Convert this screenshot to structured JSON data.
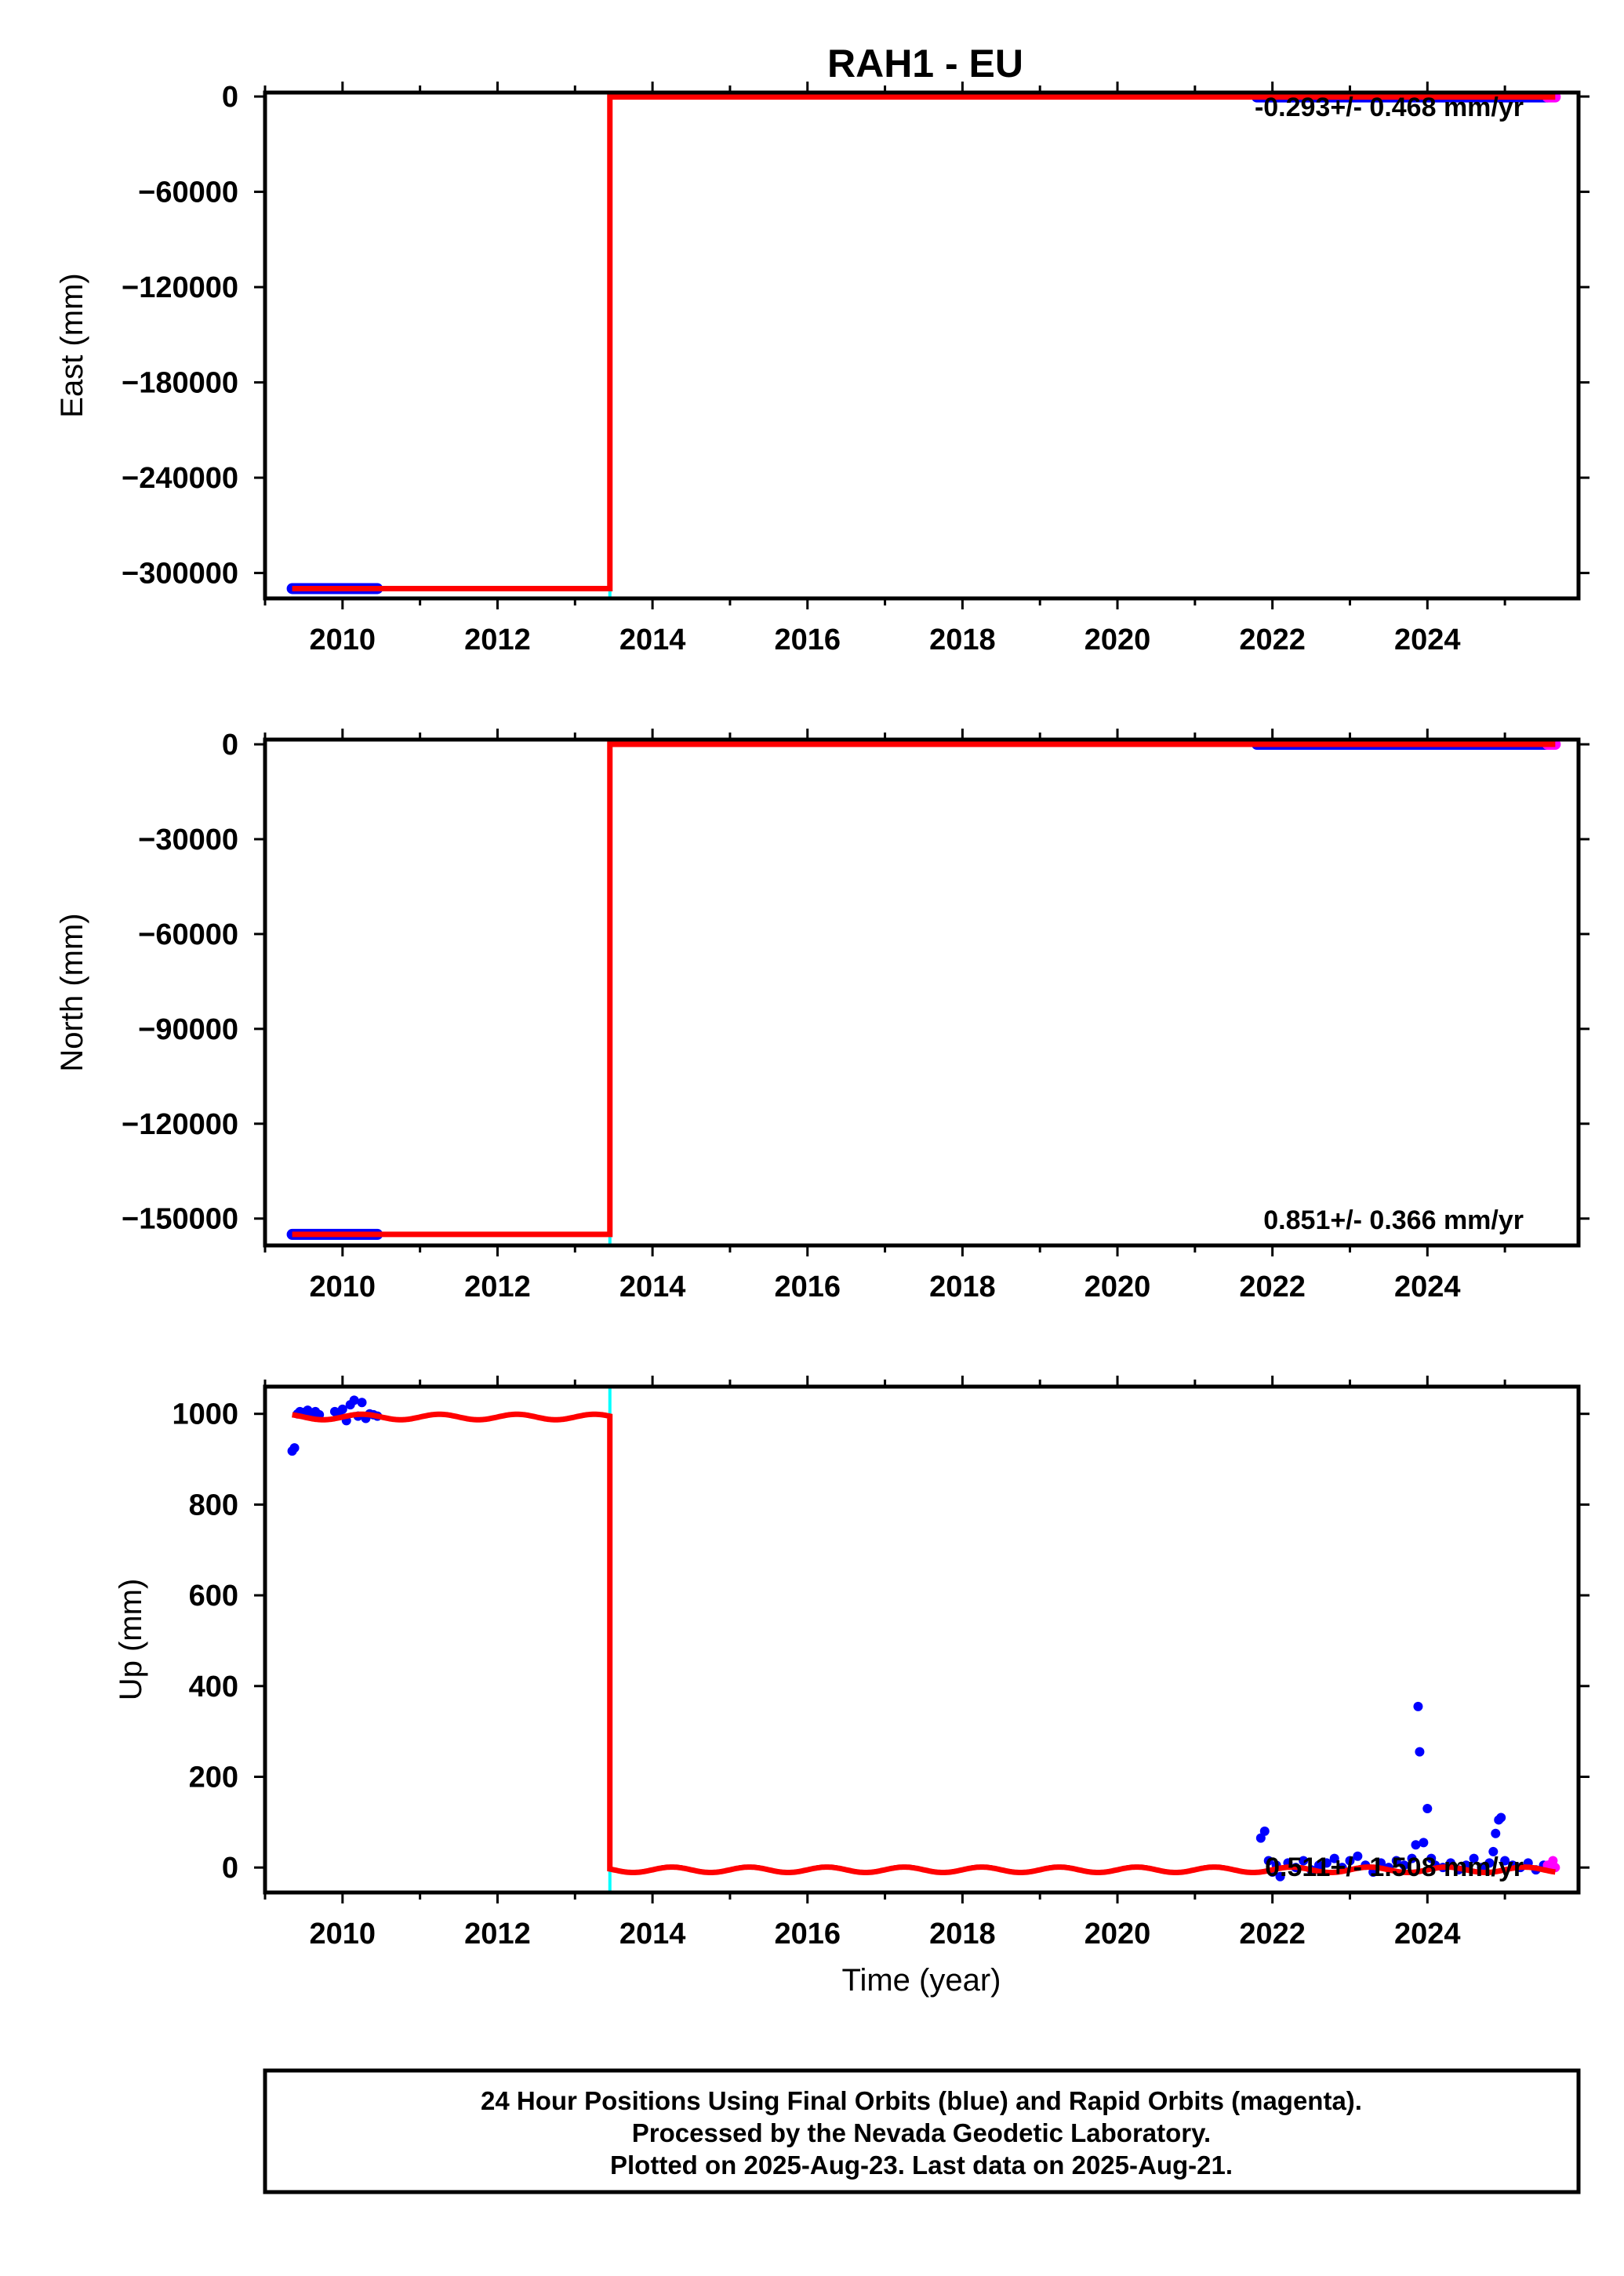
{
  "figure": {
    "title": "RAH1 - EU",
    "footer": [
      "24 Hour Positions Using Final Orbits (blue) and Rapid Orbits (magenta).",
      "Processed by the Nevada Geodetic Laboratory.",
      "Plotted on 2025-Aug-23. Last data on 2025-Aug-21."
    ],
    "colors": {
      "final_orbits": "#0000ff",
      "rapid_orbits": "#ff00ff",
      "model": "#ff0000",
      "offset_marker": "#00ffff",
      "frame": "#000000"
    }
  },
  "chart_data": [
    {
      "type": "scatter",
      "ylabel": "East (mm)",
      "xlabel": "",
      "xlim": [
        2009.0,
        2025.95
      ],
      "ylim": [
        -316000,
        2500
      ],
      "xticks": [
        2010,
        2012,
        2014,
        2016,
        2018,
        2020,
        2022,
        2024
      ],
      "yticks": [
        0,
        -60000,
        -120000,
        -180000,
        -240000,
        -300000
      ],
      "ytick_labels": [
        "0",
        "−60000",
        "−120000",
        "−180000",
        "−240000",
        "−300000"
      ],
      "rate_label": "-0.293+/- 0.468 mm/yr",
      "offset_epoch": 2013.45,
      "series": [
        {
          "kind": "final_orbits",
          "segments": [
            {
              "x": [
                2009.35,
                2010.45
              ],
              "y": -309800
            },
            {
              "x": [
                2021.8,
                2025.55
              ],
              "y": -300
            }
          ]
        },
        {
          "kind": "rapid_orbits",
          "segments": [
            {
              "x": [
                2025.55,
                2025.65
              ],
              "y": -300
            }
          ]
        },
        {
          "kind": "model",
          "steps": [
            {
              "x": [
                2009.35,
                2013.45
              ],
              "y": -309800
            },
            {
              "x": [
                2013.45,
                2025.65
              ],
              "y": -300
            }
          ]
        }
      ]
    },
    {
      "type": "scatter",
      "ylabel": "North (mm)",
      "xlabel": "",
      "xlim": [
        2009.0,
        2025.95
      ],
      "ylim": [
        -158500,
        1500
      ],
      "xticks": [
        2010,
        2012,
        2014,
        2016,
        2018,
        2020,
        2022,
        2024
      ],
      "yticks": [
        0,
        -30000,
        -60000,
        -90000,
        -120000,
        -150000
      ],
      "ytick_labels": [
        "0",
        "−30000",
        "−60000",
        "−90000",
        "−120000",
        "−150000"
      ],
      "rate_label": "0.851+/- 0.366 mm/yr",
      "offset_epoch": 2013.45,
      "series": [
        {
          "kind": "final_orbits",
          "segments": [
            {
              "x": [
                2009.35,
                2010.45
              ],
              "y": -155000
            },
            {
              "x": [
                2021.8,
                2025.55
              ],
              "y": 0
            }
          ]
        },
        {
          "kind": "rapid_orbits",
          "segments": [
            {
              "x": [
                2025.55,
                2025.65
              ],
              "y": 0
            }
          ]
        },
        {
          "kind": "model",
          "steps": [
            {
              "x": [
                2009.35,
                2013.45
              ],
              "y": -155000
            },
            {
              "x": [
                2013.45,
                2025.65
              ],
              "y": 0
            }
          ]
        }
      ]
    },
    {
      "type": "scatter",
      "ylabel": "Up (mm)",
      "xlabel": "Time (year)",
      "xlim": [
        2009.0,
        2025.95
      ],
      "ylim": [
        -55,
        1060
      ],
      "xticks": [
        2010,
        2012,
        2014,
        2016,
        2018,
        2020,
        2022,
        2024
      ],
      "yticks": [
        0,
        200,
        400,
        600,
        800,
        1000
      ],
      "ytick_labels": [
        "0",
        "200",
        "400",
        "600",
        "800",
        "1000"
      ],
      "rate_label": "0.511+/- 1.508 mm/yr",
      "offset_epoch": 2013.45,
      "model": {
        "pre_level": 993,
        "post_level": -5,
        "seasonal_amplitude": 6,
        "x_start": 2009.35,
        "x_end": 2025.65
      },
      "series": [
        {
          "kind": "final_orbits",
          "x": [
            2009.35,
            2009.38,
            2009.42,
            2009.45,
            2009.5,
            2009.55,
            2009.6,
            2009.65,
            2009.7,
            2009.9,
            2009.95,
            2010.0,
            2010.05,
            2010.1,
            2010.15,
            2010.2,
            2010.25,
            2010.3,
            2010.35,
            2010.4,
            2010.45,
            2021.85,
            2021.9,
            2021.95,
            2022.0,
            2022.05,
            2022.1,
            2022.2,
            2022.3,
            2022.4,
            2022.5,
            2022.6,
            2022.7,
            2022.8,
            2022.9,
            2023.0,
            2023.1,
            2023.2,
            2023.3,
            2023.4,
            2023.5,
            2023.6,
            2023.7,
            2023.8,
            2023.85,
            2023.88,
            2023.9,
            2023.95,
            2024.0,
            2024.05,
            2024.1,
            2024.2,
            2024.3,
            2024.4,
            2024.5,
            2024.6,
            2024.7,
            2024.8,
            2024.85,
            2024.88,
            2024.92,
            2024.95,
            2025.0,
            2025.1,
            2025.2,
            2025.3,
            2025.4,
            2025.5
          ],
          "y": [
            918,
            925,
            1000,
            1005,
            1003,
            1008,
            1000,
            1005,
            998,
            1005,
            1000,
            1010,
            985,
            1020,
            1030,
            995,
            1025,
            990,
            1000,
            998,
            995,
            65,
            80,
            15,
            -10,
            5,
            -20,
            10,
            0,
            15,
            -5,
            5,
            10,
            20,
            0,
            15,
            25,
            5,
            -10,
            10,
            0,
            15,
            5,
            20,
            50,
            355,
            255,
            55,
            130,
            20,
            5,
            0,
            10,
            -5,
            5,
            20,
            0,
            10,
            35,
            75,
            105,
            110,
            15,
            5,
            0,
            10,
            -5,
            5
          ]
        },
        {
          "kind": "rapid_orbits",
          "x": [
            2025.55,
            2025.58,
            2025.6,
            2025.62,
            2025.65
          ],
          "y": [
            5,
            -2,
            8,
            15,
            0
          ]
        }
      ]
    }
  ]
}
